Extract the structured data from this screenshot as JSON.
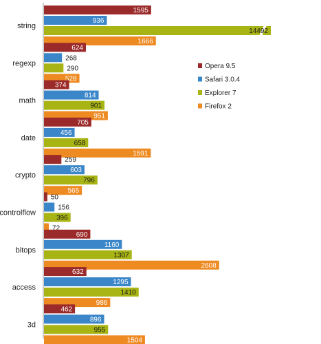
{
  "chart_data": {
    "type": "bar",
    "orientation": "horizontal",
    "categories": [
      "string",
      "regexp",
      "math",
      "date",
      "crypto",
      "controlflow",
      "bitops",
      "access",
      "3d"
    ],
    "series": [
      {
        "name": "Opera 9.5",
        "color": "#9b2a2a",
        "values": [
          1595,
          624,
          374,
          705,
          259,
          50,
          690,
          632,
          462
        ]
      },
      {
        "name": "Safari 3.0.4",
        "color": "#3a86c8",
        "values": [
          936,
          268,
          814,
          456,
          603,
          156,
          1160,
          1295,
          896
        ]
      },
      {
        "name": "Explorer 7",
        "color": "#a8b414",
        "values": [
          14492,
          290,
          901,
          658,
          796,
          396,
          1307,
          1410,
          955
        ]
      },
      {
        "name": "Firefox 2",
        "color": "#ee8a22",
        "values": [
          1666,
          528,
          951,
          1591,
          565,
          72,
          2608,
          986,
          1504
        ]
      }
    ],
    "axis_break": true,
    "legend_position": "right",
    "grid": false,
    "title": "",
    "xlabel": "",
    "ylabel": ""
  }
}
